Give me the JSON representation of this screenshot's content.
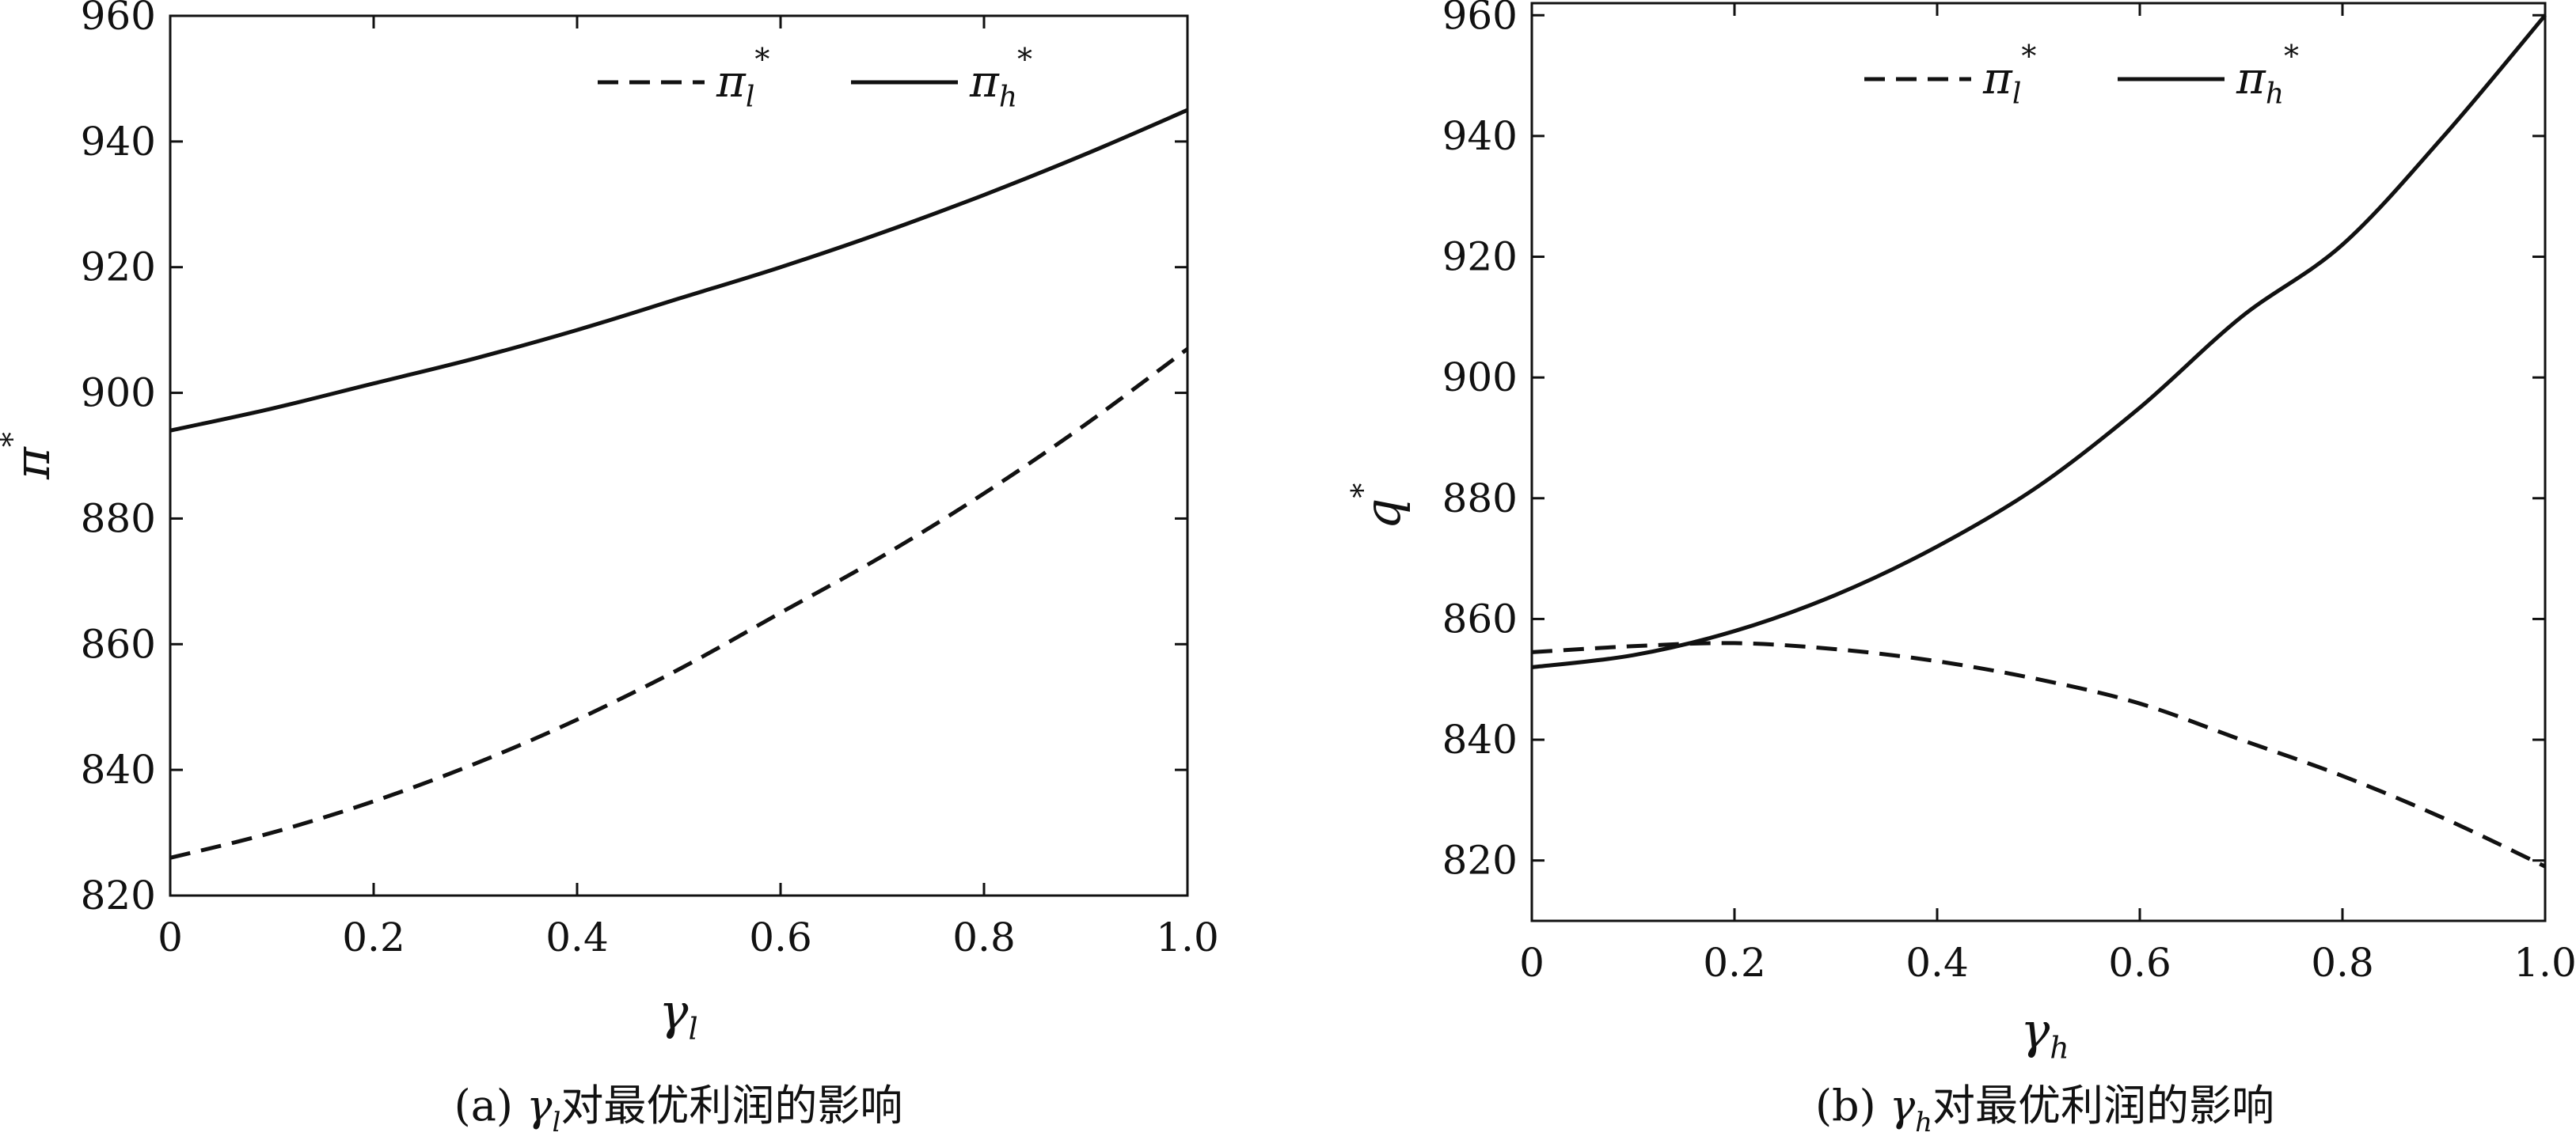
{
  "chart_data": [
    {
      "type": "line",
      "caption": "(a) γl对最优利润的影响",
      "xlabel": "γl",
      "ylabel": "π*",
      "xlim": [
        0,
        1.0
      ],
      "ylim": [
        820,
        960
      ],
      "xticks": [
        "0",
        "0.2",
        "0.4",
        "0.6",
        "0.8",
        "1.0"
      ],
      "yticks": [
        "820",
        "840",
        "860",
        "880",
        "900",
        "920",
        "940",
        "960"
      ],
      "legend_position": "top-right",
      "grid": false,
      "series": [
        {
          "name": "πl*",
          "style": "dashed",
          "color": "#111111",
          "x": [
            0,
            0.1,
            0.2,
            0.3,
            0.4,
            0.5,
            0.6,
            0.7,
            0.8,
            0.9,
            1.0
          ],
          "y": [
            826,
            830,
            835,
            841,
            848,
            856,
            865,
            874,
            884,
            895,
            907
          ]
        },
        {
          "name": "πh*",
          "style": "solid",
          "color": "#111111",
          "x": [
            0,
            0.1,
            0.2,
            0.3,
            0.4,
            0.5,
            0.6,
            0.7,
            0.8,
            0.9,
            1.0
          ],
          "y": [
            894,
            897.5,
            901.5,
            905.5,
            910,
            915,
            920,
            925.5,
            931.5,
            938,
            945
          ]
        }
      ]
    },
    {
      "type": "line",
      "caption": "(b) γh对最优利润的影响",
      "xlabel": "γh",
      "ylabel": "q*",
      "xlim": [
        0,
        1.0
      ],
      "ylim": [
        810,
        962
      ],
      "xticks": [
        "0",
        "0.2",
        "0.4",
        "0.6",
        "0.8",
        "1.0"
      ],
      "yticks": [
        "820",
        "840",
        "860",
        "880",
        "900",
        "920",
        "940",
        "960"
      ],
      "legend_position": "top-center",
      "grid": false,
      "series": [
        {
          "name": "πl*",
          "style": "dashed",
          "color": "#111111",
          "x": [
            0,
            0.1,
            0.2,
            0.3,
            0.4,
            0.5,
            0.6,
            0.7,
            0.8,
            0.9,
            1.0
          ],
          "y": [
            854.5,
            855.5,
            856,
            855,
            853,
            850,
            846,
            840,
            834,
            827,
            819
          ]
        },
        {
          "name": "πh*",
          "style": "solid",
          "color": "#111111",
          "x": [
            0,
            0.1,
            0.2,
            0.3,
            0.4,
            0.5,
            0.6,
            0.7,
            0.8,
            0.9,
            1.0
          ],
          "y": [
            852,
            854,
            858,
            864,
            872,
            882,
            895,
            910,
            922,
            940,
            960
          ]
        }
      ]
    }
  ]
}
